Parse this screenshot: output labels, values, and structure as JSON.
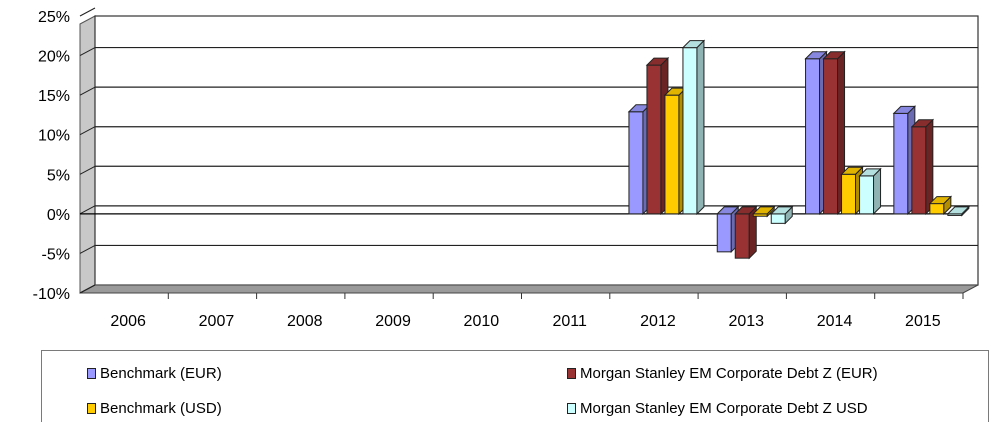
{
  "chart_data": {
    "type": "bar",
    "categories": [
      "2006",
      "2007",
      "2008",
      "2009",
      "2010",
      "2011",
      "2012",
      "2013",
      "2014",
      "2015"
    ],
    "y_ticks": [
      "25%",
      "20%",
      "15%",
      "10%",
      "5%",
      "0%",
      "-5%",
      "-10%"
    ],
    "ylim": [
      -10,
      25
    ],
    "grid": true,
    "legend_position": "bottom",
    "series": [
      {
        "name": "Benchmark (EUR)",
        "color": "#9999ff",
        "values": [
          null,
          null,
          null,
          null,
          null,
          null,
          12.9,
          -4.8,
          19.6,
          12.7
        ]
      },
      {
        "name": "Morgan Stanley EM Corporate Debt Z (EUR)",
        "color": "#993333",
        "values": [
          null,
          null,
          null,
          null,
          null,
          null,
          18.8,
          -5.6,
          19.6,
          11.0
        ]
      },
      {
        "name": "Benchmark (USD)",
        "color": "#ffcc00",
        "values": [
          null,
          null,
          null,
          null,
          null,
          null,
          15.0,
          -0.3,
          5.0,
          1.3
        ]
      },
      {
        "name": "Morgan Stanley EM Corporate Debt Z USD",
        "color": "#ccffff",
        "values": [
          null,
          null,
          null,
          null,
          null,
          null,
          21.0,
          -1.2,
          4.8,
          -0.2
        ]
      }
    ],
    "title": "",
    "xlabel": "",
    "ylabel": ""
  }
}
